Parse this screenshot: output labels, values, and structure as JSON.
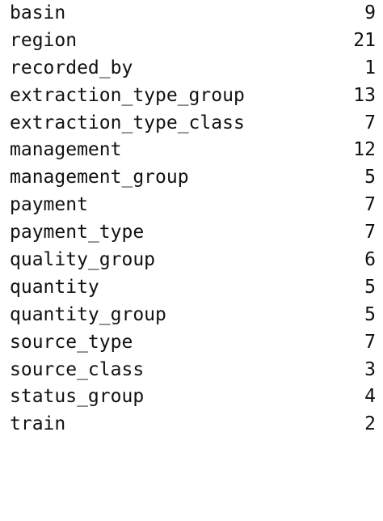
{
  "output": {
    "rows": [
      {
        "name": "basin",
        "count": "9"
      },
      {
        "name": "region",
        "count": "21"
      },
      {
        "name": "recorded_by",
        "count": "1"
      },
      {
        "name": "extraction_type_group",
        "count": "13"
      },
      {
        "name": "extraction_type_class",
        "count": "7"
      },
      {
        "name": "management",
        "count": "12"
      },
      {
        "name": "management_group",
        "count": "5"
      },
      {
        "name": "payment",
        "count": "7"
      },
      {
        "name": "payment_type",
        "count": "7"
      },
      {
        "name": "quality_group",
        "count": "6"
      },
      {
        "name": "quantity",
        "count": "5"
      },
      {
        "name": "quantity_group",
        "count": "5"
      },
      {
        "name": "source_type",
        "count": "7"
      },
      {
        "name": "source_class",
        "count": "3"
      },
      {
        "name": "status_group",
        "count": "4"
      },
      {
        "name": "train",
        "count": "2"
      }
    ]
  }
}
